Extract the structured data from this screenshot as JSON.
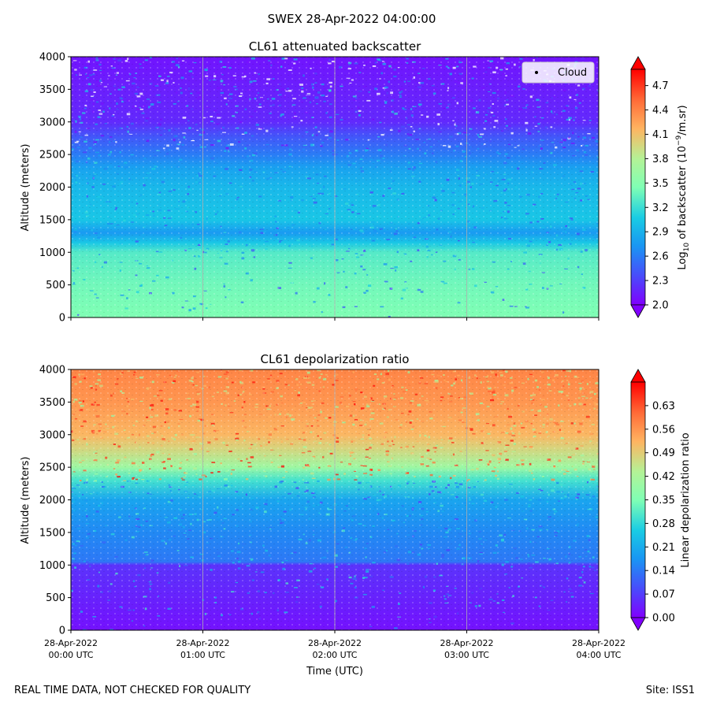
{
  "suptitle": "SWEX 28-Apr-2022 04:00:00",
  "footer": {
    "disclaimer": "REAL TIME DATA, NOT CHECKED FOR QUALITY",
    "site": "Site: ISS1"
  },
  "chart_data": [
    {
      "type": "heatmap",
      "title": "CL61 attenuated backscatter",
      "ylabel": "Altitude (meters)",
      "ylim": [
        0,
        4000
      ],
      "yticks": [
        0,
        500,
        1000,
        1500,
        2000,
        2500,
        3000,
        3500,
        4000
      ],
      "xlim_hours": [
        0,
        4
      ],
      "legend": {
        "entries": [
          "Cloud"
        ],
        "placement": "top-right"
      },
      "colorbar": {
        "label_prefix": "Log",
        "label_sub": "10",
        "label_mid": " of backscatter (10",
        "label_sup": "−9",
        "label_suffix": "/m.sr)",
        "range": [
          2.0,
          4.9
        ],
        "ticks": [
          2.0,
          2.3,
          2.6,
          2.9,
          3.2,
          3.5,
          3.8,
          4.1,
          4.4,
          4.7
        ],
        "tick_labels": [
          "2.0",
          "2.3",
          "2.6",
          "2.9",
          "3.2",
          "3.5",
          "3.8",
          "4.1",
          "4.4",
          "4.7"
        ],
        "colormap": "rainbow"
      },
      "profile": {
        "altitudes": [
          0,
          500,
          1000,
          1150,
          1300,
          1500,
          2000,
          2300,
          2500,
          2800,
          3000,
          3500,
          4000
        ],
        "values": [
          3.45,
          3.4,
          3.3,
          3.05,
          2.75,
          3.05,
          2.95,
          2.8,
          2.6,
          2.4,
          2.2,
          2.15,
          2.1
        ]
      }
    },
    {
      "type": "heatmap",
      "title": "CL61 depolarization ratio",
      "ylabel": "Altitude (meters)",
      "xlabel": "Time (UTC)",
      "ylim": [
        0,
        4000
      ],
      "yticks": [
        0,
        500,
        1000,
        1500,
        2000,
        2500,
        3000,
        3500,
        4000
      ],
      "xlim_hours": [
        0,
        4
      ],
      "xticks": [
        {
          "hour": 0,
          "line1": "28-Apr-2022",
          "line2": "00:00 UTC"
        },
        {
          "hour": 1,
          "line1": "28-Apr-2022",
          "line2": "01:00 UTC"
        },
        {
          "hour": 2,
          "line1": "28-Apr-2022",
          "line2": "02:00 UTC"
        },
        {
          "hour": 3,
          "line1": "28-Apr-2022",
          "line2": "03:00 UTC"
        },
        {
          "hour": 4,
          "line1": "28-Apr-2022",
          "line2": "04:00 UTC"
        }
      ],
      "colorbar": {
        "label": "Linear depolarization ratio",
        "range": [
          0.0,
          0.7
        ],
        "ticks": [
          0.0,
          0.07,
          0.14,
          0.21,
          0.28,
          0.35,
          0.42,
          0.49,
          0.56,
          0.63
        ],
        "tick_labels": [
          "0.00",
          "0.07",
          "0.14",
          "0.21",
          "0.28",
          "0.35",
          "0.42",
          "0.49",
          "0.56",
          "0.63"
        ],
        "colormap": "rainbow"
      },
      "profile": {
        "altitudes": [
          0,
          500,
          1000,
          1050,
          1500,
          2000,
          2300,
          2500,
          2800,
          3000,
          3500,
          4000
        ],
        "values": [
          0.02,
          0.04,
          0.06,
          0.14,
          0.16,
          0.2,
          0.3,
          0.4,
          0.48,
          0.52,
          0.56,
          0.58
        ]
      }
    }
  ]
}
